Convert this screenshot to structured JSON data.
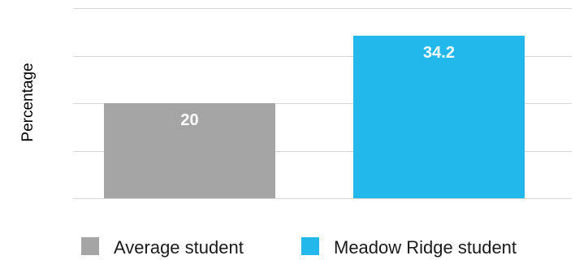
{
  "chart_data": {
    "type": "bar",
    "categories": [
      "Average student",
      "Meadow Ridge student"
    ],
    "values": [
      20,
      34.2
    ],
    "value_labels": [
      "20",
      "34.2"
    ],
    "colors": [
      "#a5a5a5",
      "#22b8ec"
    ],
    "title": "",
    "xlabel": "",
    "ylabel": "Percentage",
    "ylim": [
      0,
      40
    ],
    "gridlines": [
      0,
      10,
      20,
      30,
      40
    ],
    "grid": true,
    "legend": {
      "position": "bottom",
      "entries": [
        "Average student",
        "Meadow Ridge student"
      ]
    }
  }
}
